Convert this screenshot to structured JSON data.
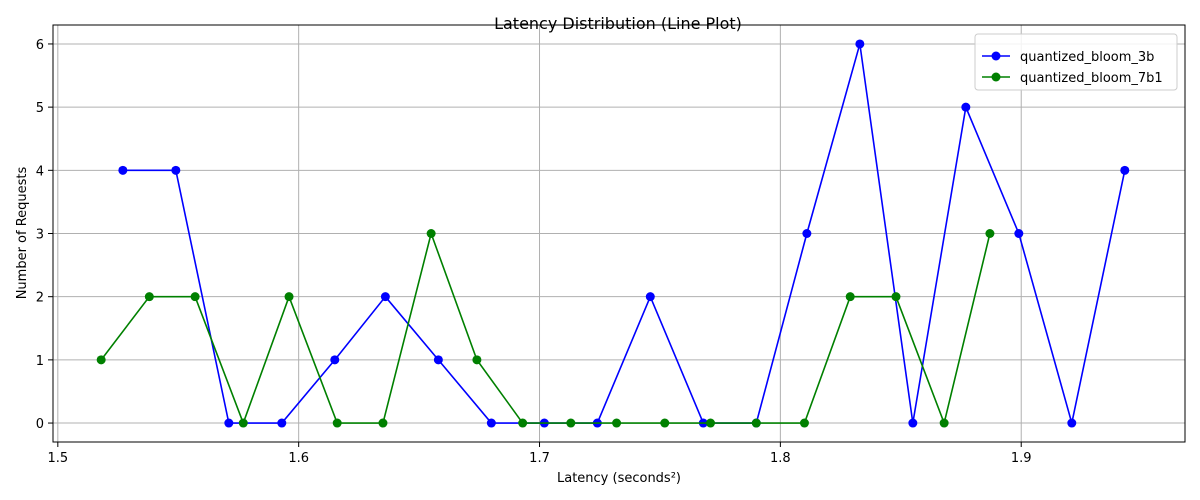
{
  "chart_data": {
    "type": "line",
    "title": "Latency Distribution (Line Plot)",
    "xlabel": "Latency (seconds²)",
    "ylabel": "Number of Requests",
    "xlim": [
      1.498,
      1.968
    ],
    "ylim": [
      -0.3,
      6.3
    ],
    "xticks": [
      1.5,
      1.6,
      1.7,
      1.8,
      1.9
    ],
    "xtick_labels": [
      "1.5",
      "1.6",
      "1.7",
      "1.8",
      "1.9"
    ],
    "yticks": [
      0,
      1,
      2,
      3,
      4,
      5,
      6
    ],
    "ytick_labels": [
      "0",
      "1",
      "2",
      "3",
      "4",
      "5",
      "6"
    ],
    "grid": true,
    "legend_position": "top-right",
    "series": [
      {
        "name": "quantized_bloom_3b",
        "color": "#0000ff",
        "x": [
          1.527,
          1.549,
          1.571,
          1.593,
          1.615,
          1.636,
          1.658,
          1.68,
          1.702,
          1.724,
          1.746,
          1.768,
          1.79,
          1.811,
          1.833,
          1.855,
          1.877,
          1.899,
          1.921,
          1.943
        ],
        "y": [
          4,
          4,
          0,
          0,
          1,
          2,
          1,
          0,
          0,
          0,
          2,
          0,
          0,
          3,
          6,
          0,
          5,
          3,
          0,
          4
        ]
      },
      {
        "name": "quantized_bloom_7b1",
        "color": "#008000",
        "x": [
          1.518,
          1.538,
          1.557,
          1.577,
          1.596,
          1.616,
          1.635,
          1.655,
          1.674,
          1.693,
          1.713,
          1.732,
          1.752,
          1.771,
          1.79,
          1.81,
          1.829,
          1.848,
          1.868,
          1.887
        ],
        "y": [
          1,
          2,
          2,
          0,
          2,
          0,
          0,
          3,
          1,
          0,
          0,
          0,
          0,
          0,
          0,
          0,
          2,
          2,
          0,
          3
        ]
      }
    ]
  }
}
